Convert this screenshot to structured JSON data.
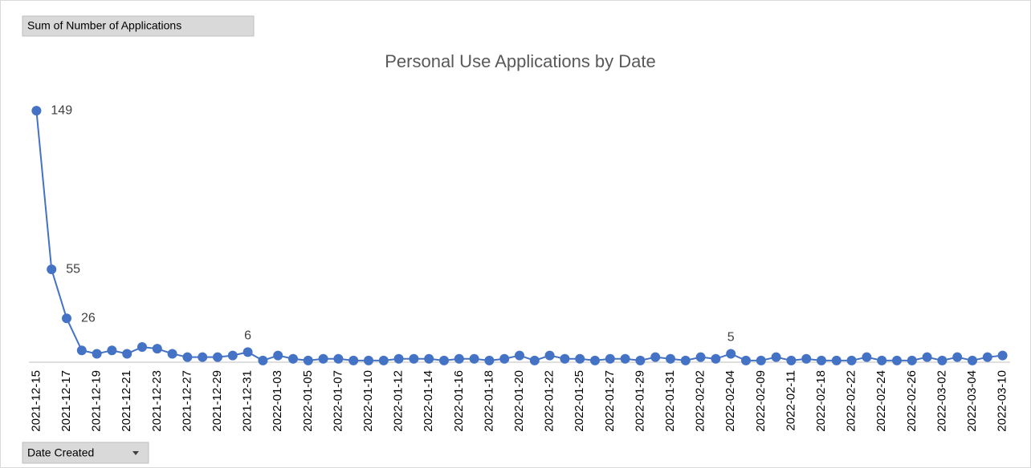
{
  "field_buttons": {
    "values": "Sum of Number of Applications",
    "axis": "Date Created"
  },
  "chart_data": {
    "type": "line",
    "title": "Personal Use Applications by Date",
    "categories": [
      "2021-12-15",
      null,
      "2021-12-17",
      null,
      "2021-12-19",
      null,
      "2021-12-21",
      null,
      "2021-12-23",
      null,
      "2021-12-27",
      null,
      "2021-12-29",
      null,
      "2021-12-31",
      null,
      "2022-01-03",
      null,
      "2022-01-05",
      null,
      "2022-01-07",
      null,
      "2022-01-10",
      null,
      "2022-01-12",
      null,
      "2022-01-14",
      null,
      "2022-01-16",
      null,
      "2022-01-18",
      null,
      "2022-01-20",
      null,
      "2022-01-22",
      null,
      "2022-01-25",
      null,
      "2022-01-27",
      null,
      "2022-01-29",
      null,
      "2022-01-31",
      null,
      "2022-02-02",
      null,
      "2022-02-04",
      null,
      "2022-02-09",
      null,
      "2022-02-11",
      null,
      "2022-02-18",
      null,
      "2022-02-22",
      null,
      "2022-02-24",
      null,
      "2022-02-26",
      null,
      "2022-03-02",
      null,
      "2022-03-04",
      null,
      "2022-03-10"
    ],
    "series": [
      {
        "name": "Sum of Number of Applications",
        "color": "#4472c4",
        "values": [
          149,
          55,
          26,
          7,
          5,
          7,
          5,
          9,
          8,
          5,
          3,
          3,
          3,
          4,
          6,
          1,
          4,
          2,
          1,
          2,
          2,
          1,
          1,
          1,
          2,
          2,
          2,
          1,
          2,
          2,
          1,
          2,
          4,
          1,
          4,
          2,
          2,
          1,
          2,
          2,
          1,
          3,
          2,
          1,
          3,
          2,
          5,
          1,
          1,
          3,
          1,
          2,
          1,
          1,
          1,
          3,
          1,
          1,
          1,
          3,
          1,
          3,
          1,
          3,
          4
        ],
        "value_labels": [
          "149",
          "55",
          "26",
          null,
          null,
          null,
          null,
          null,
          null,
          null,
          null,
          null,
          null,
          null,
          "6",
          null,
          null,
          null,
          null,
          null,
          null,
          null,
          null,
          null,
          null,
          null,
          null,
          null,
          null,
          null,
          null,
          null,
          null,
          null,
          null,
          null,
          null,
          null,
          null,
          null,
          null,
          null,
          null,
          null,
          null,
          null,
          "5",
          null,
          null,
          null,
          null,
          null,
          null,
          null,
          null,
          null,
          null,
          null,
          null,
          null,
          null,
          null,
          null,
          null,
          null
        ]
      }
    ],
    "ylim": [
      0,
      160
    ],
    "grid": false,
    "legend": false
  }
}
